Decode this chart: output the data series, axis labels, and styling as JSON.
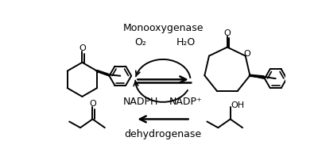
{
  "bg_color": "#ffffff",
  "text_color": "#000000",
  "labels": {
    "monooxygenase": "Monooxygenase",
    "o2": "O₂",
    "h2o": "H₂O",
    "nadph": "NADPH",
    "nadp": "NADP⁺",
    "dehydrogenase": "dehydrogenase"
  },
  "arrow_color": "#000000",
  "figsize": [
    4.0,
    2.03
  ],
  "dpi": 100
}
